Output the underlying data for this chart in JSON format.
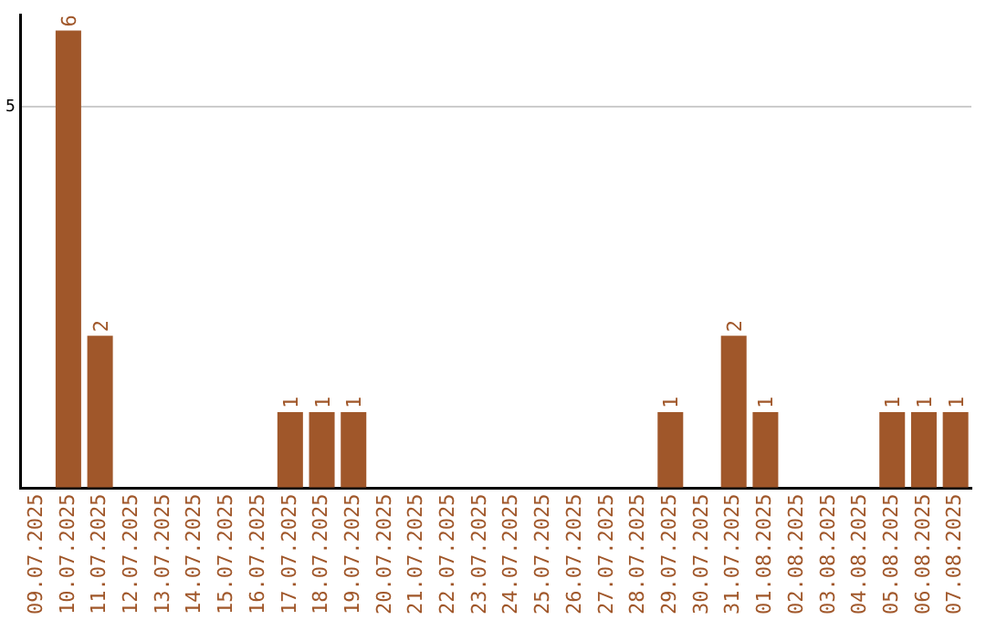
{
  "chart_data": {
    "type": "bar",
    "categories": [
      "09.07.2025",
      "10.07.2025",
      "11.07.2025",
      "12.07.2025",
      "13.07.2025",
      "14.07.2025",
      "15.07.2025",
      "16.07.2025",
      "17.07.2025",
      "18.07.2025",
      "19.07.2025",
      "20.07.2025",
      "21.07.2025",
      "22.07.2025",
      "23.07.2025",
      "24.07.2025",
      "25.07.2025",
      "26.07.2025",
      "27.07.2025",
      "28.07.2025",
      "29.07.2025",
      "30.07.2025",
      "31.07.2025",
      "01.08.2025",
      "02.08.2025",
      "03.08.2025",
      "04.08.2025",
      "05.08.2025",
      "06.08.2025",
      "07.08.2025"
    ],
    "values": [
      0,
      6,
      2,
      0,
      0,
      0,
      0,
      0,
      1,
      1,
      1,
      0,
      0,
      0,
      0,
      0,
      0,
      0,
      0,
      0,
      1,
      0,
      2,
      1,
      0,
      0,
      0,
      1,
      1,
      1
    ],
    "value_labels": [
      null,
      "6",
      "2",
      null,
      null,
      null,
      null,
      null,
      "1",
      "1",
      "1",
      null,
      null,
      null,
      null,
      null,
      null,
      null,
      null,
      null,
      "1",
      null,
      "2",
      "1",
      null,
      null,
      null,
      "1",
      "1",
      "1"
    ],
    "color": "#a0572a",
    "ylim": [
      0,
      6.2
    ],
    "yticks": [
      {
        "value": 0,
        "label": null
      },
      5
    ],
    "grid": "y",
    "legend": false
  }
}
